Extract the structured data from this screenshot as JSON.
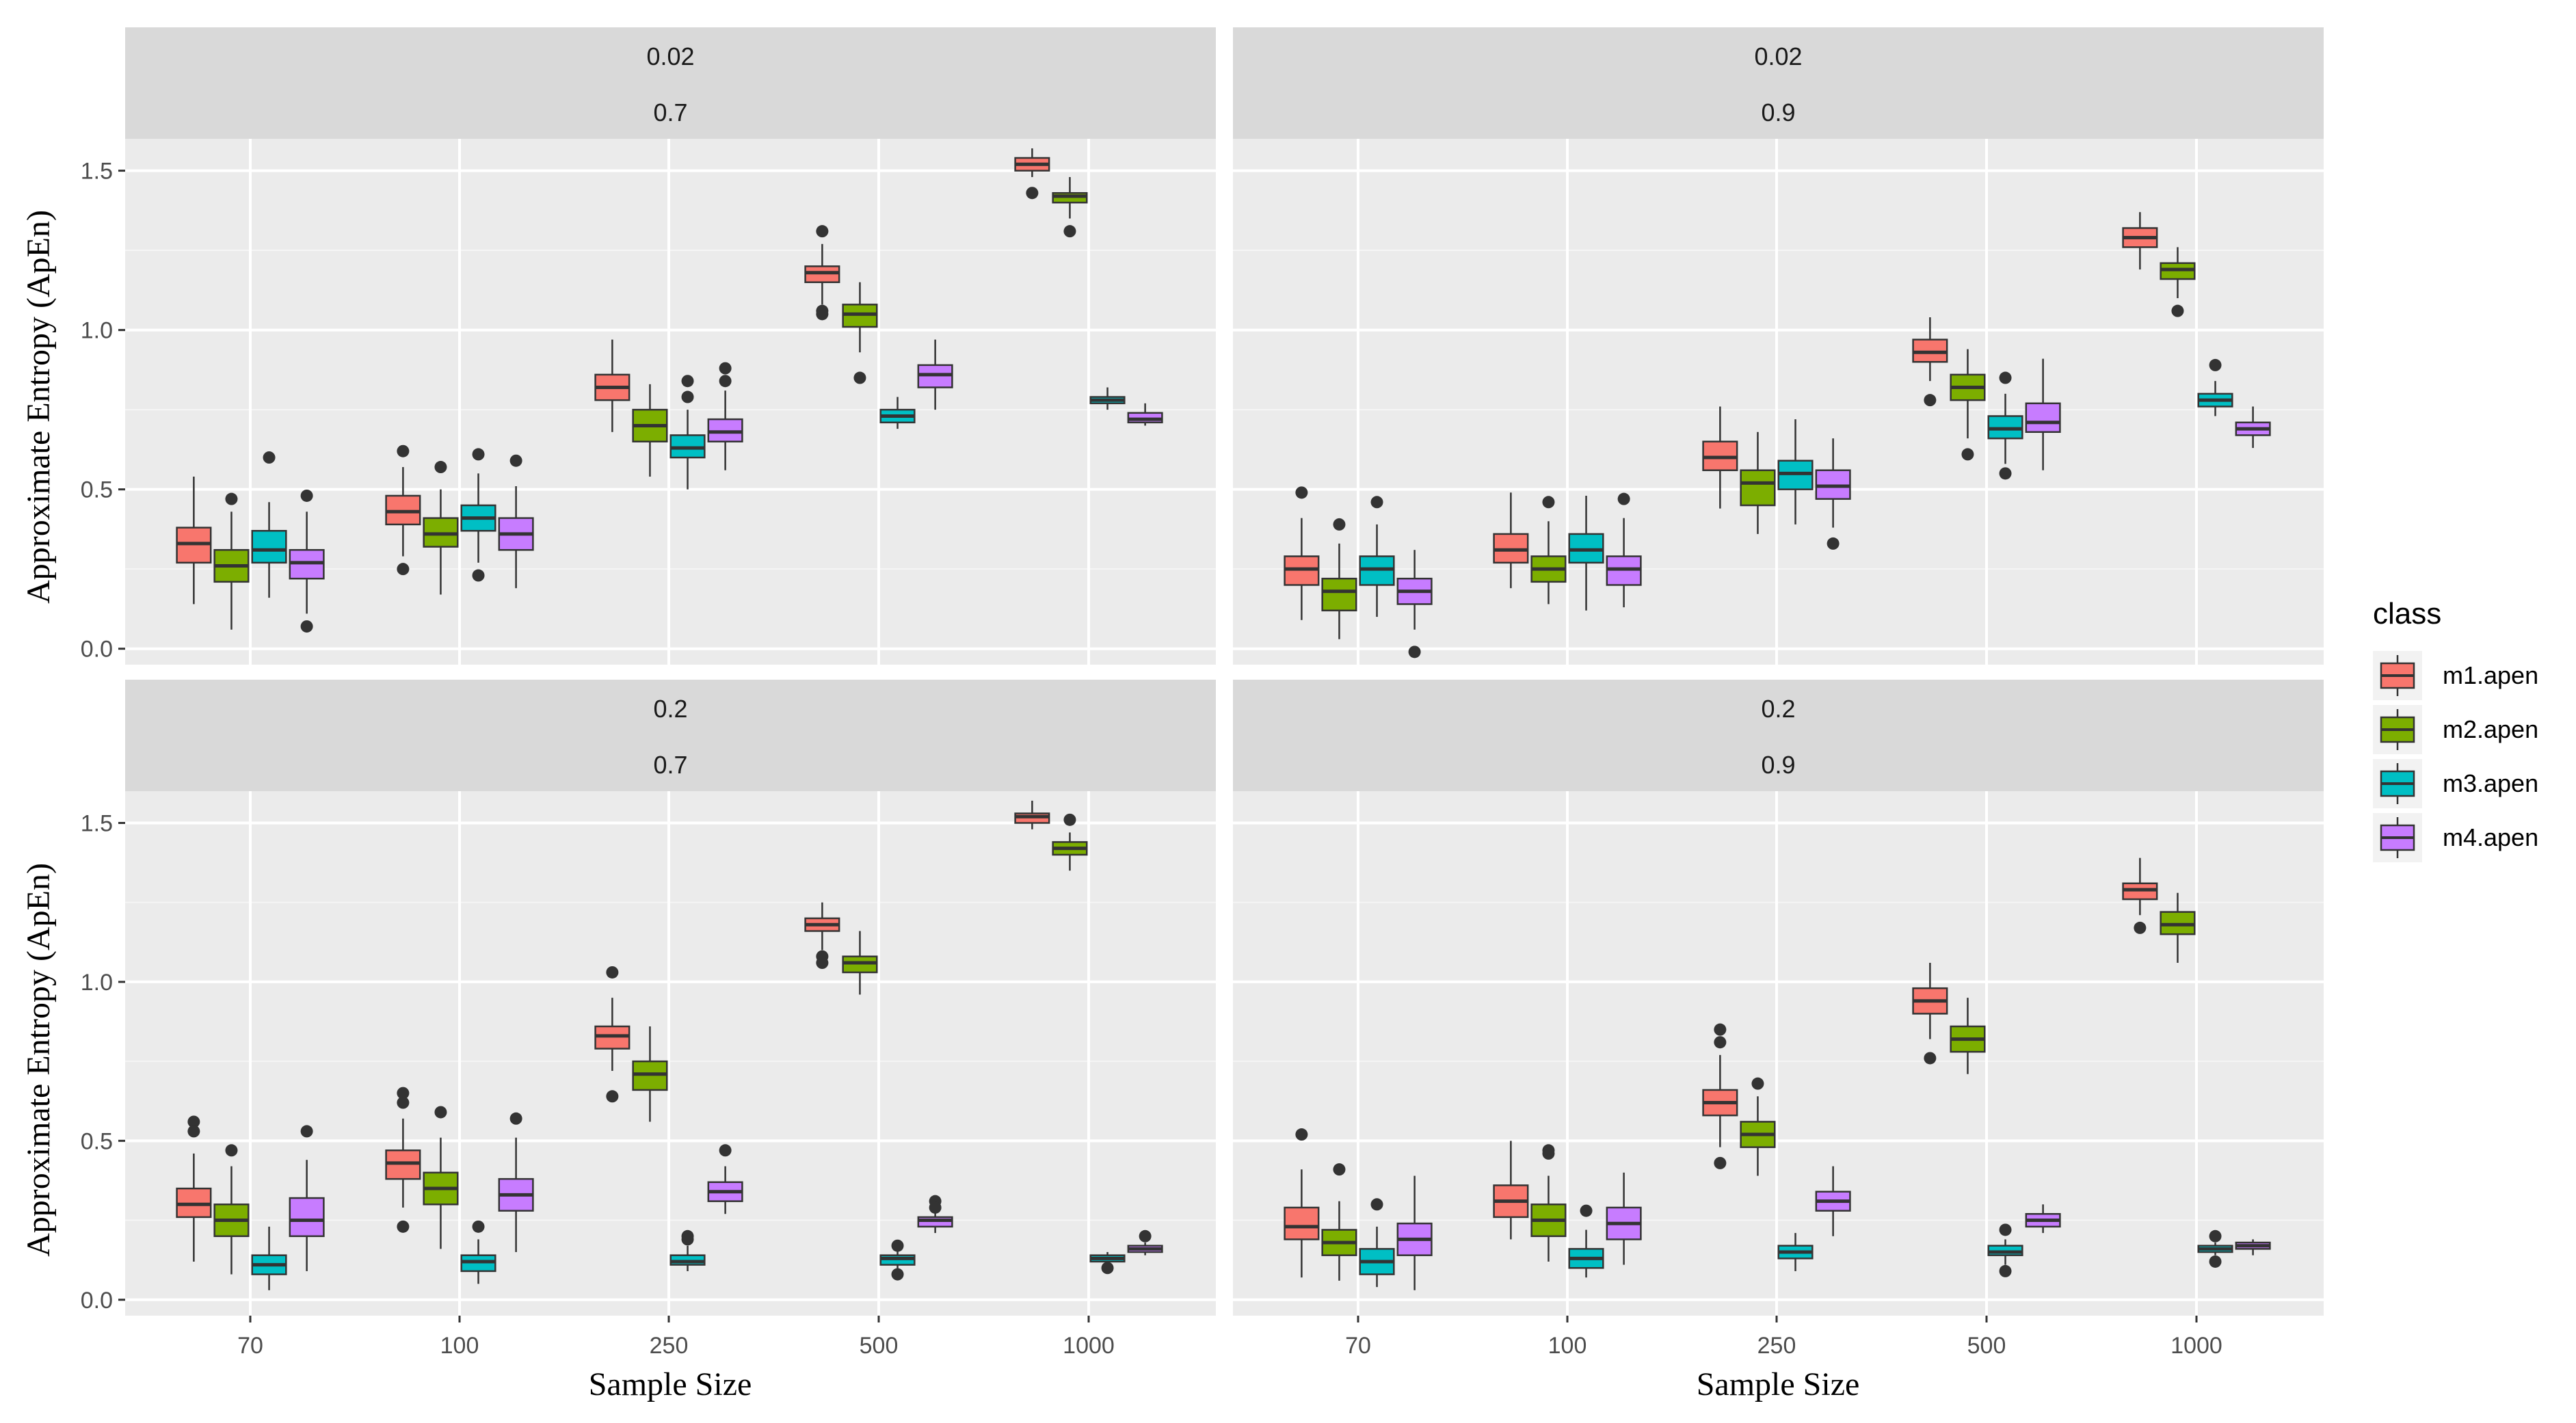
{
  "chart_data": {
    "type": "boxplot",
    "xlabel": "Sample Size",
    "ylabel": "Approximate Entropy (ApEn)",
    "categories": [
      "70",
      "100",
      "250",
      "500",
      "1000"
    ],
    "ylim": [
      -0.05,
      1.6
    ],
    "yticks": [
      0.0,
      0.5,
      1.0,
      1.5
    ],
    "ytick_labels": [
      "0.0",
      "0.5",
      "1.0",
      "1.5"
    ],
    "legend": {
      "title": "class",
      "position": "right",
      "entries": [
        {
          "name": "m1.apen",
          "color": "#F8766D"
        },
        {
          "name": "m2.apen",
          "color": "#7CAE00"
        },
        {
          "name": "m3.apen",
          "color": "#00BFC4"
        },
        {
          "name": "m4.apen",
          "color": "#C77CFF"
        }
      ]
    },
    "panels": [
      {
        "strip": [
          "0.02",
          "0.7"
        ],
        "boxes": [
          [
            {
              "wl": 0.14,
              "q1": 0.27,
              "med": 0.33,
              "q3": 0.38,
              "wh": 0.54,
              "out": []
            },
            {
              "wl": 0.06,
              "q1": 0.21,
              "med": 0.26,
              "q3": 0.31,
              "wh": 0.43,
              "out": [
                0.47
              ]
            },
            {
              "wl": 0.16,
              "q1": 0.27,
              "med": 0.31,
              "q3": 0.37,
              "wh": 0.46,
              "out": [
                0.6
              ]
            },
            {
              "wl": 0.11,
              "q1": 0.22,
              "med": 0.27,
              "q3": 0.31,
              "wh": 0.43,
              "out": [
                0.48,
                0.07
              ]
            }
          ],
          [
            {
              "wl": 0.29,
              "q1": 0.39,
              "med": 0.43,
              "q3": 0.48,
              "wh": 0.57,
              "out": [
                0.62,
                0.25
              ]
            },
            {
              "wl": 0.17,
              "q1": 0.32,
              "med": 0.36,
              "q3": 0.41,
              "wh": 0.5,
              "out": [
                0.57
              ]
            },
            {
              "wl": 0.27,
              "q1": 0.37,
              "med": 0.41,
              "q3": 0.45,
              "wh": 0.55,
              "out": [
                0.61,
                0.23
              ]
            },
            {
              "wl": 0.19,
              "q1": 0.31,
              "med": 0.36,
              "q3": 0.41,
              "wh": 0.51,
              "out": [
                0.59
              ]
            }
          ],
          [
            {
              "wl": 0.68,
              "q1": 0.78,
              "med": 0.82,
              "q3": 0.86,
              "wh": 0.97,
              "out": []
            },
            {
              "wl": 0.54,
              "q1": 0.65,
              "med": 0.7,
              "q3": 0.75,
              "wh": 0.83,
              "out": []
            },
            {
              "wl": 0.5,
              "q1": 0.6,
              "med": 0.63,
              "q3": 0.67,
              "wh": 0.75,
              "out": [
                0.84,
                0.79
              ]
            },
            {
              "wl": 0.56,
              "q1": 0.65,
              "med": 0.68,
              "q3": 0.72,
              "wh": 0.81,
              "out": [
                0.88,
                0.84
              ]
            }
          ],
          [
            {
              "wl": 1.08,
              "q1": 1.15,
              "med": 1.18,
              "q3": 1.2,
              "wh": 1.27,
              "out": [
                1.31,
                1.06,
                1.05
              ]
            },
            {
              "wl": 0.93,
              "q1": 1.01,
              "med": 1.05,
              "q3": 1.08,
              "wh": 1.15,
              "out": [
                0.85
              ]
            },
            {
              "wl": 0.69,
              "q1": 0.71,
              "med": 0.73,
              "q3": 0.75,
              "wh": 0.79,
              "out": []
            },
            {
              "wl": 0.75,
              "q1": 0.82,
              "med": 0.86,
              "q3": 0.89,
              "wh": 0.97,
              "out": []
            }
          ],
          [
            {
              "wl": 1.48,
              "q1": 1.5,
              "med": 1.52,
              "q3": 1.54,
              "wh": 1.57,
              "out": [
                1.43
              ]
            },
            {
              "wl": 1.35,
              "q1": 1.4,
              "med": 1.42,
              "q3": 1.43,
              "wh": 1.48,
              "out": [
                1.31
              ]
            },
            {
              "wl": 0.75,
              "q1": 0.77,
              "med": 0.78,
              "q3": 0.79,
              "wh": 0.82,
              "out": []
            },
            {
              "wl": 0.7,
              "q1": 0.71,
              "med": 0.72,
              "q3": 0.74,
              "wh": 0.77,
              "out": []
            }
          ]
        ]
      },
      {
        "strip": [
          "0.02",
          "0.9"
        ],
        "boxes": [
          [
            {
              "wl": 0.09,
              "q1": 0.2,
              "med": 0.25,
              "q3": 0.29,
              "wh": 0.41,
              "out": [
                0.49
              ]
            },
            {
              "wl": 0.03,
              "q1": 0.12,
              "med": 0.18,
              "q3": 0.22,
              "wh": 0.33,
              "out": [
                0.39
              ]
            },
            {
              "wl": 0.1,
              "q1": 0.2,
              "med": 0.25,
              "q3": 0.29,
              "wh": 0.39,
              "out": [
                0.46
              ]
            },
            {
              "wl": 0.06,
              "q1": 0.14,
              "med": 0.18,
              "q3": 0.22,
              "wh": 0.31,
              "out": [
                -0.01
              ]
            }
          ],
          [
            {
              "wl": 0.19,
              "q1": 0.27,
              "med": 0.31,
              "q3": 0.36,
              "wh": 0.49,
              "out": []
            },
            {
              "wl": 0.14,
              "q1": 0.21,
              "med": 0.25,
              "q3": 0.29,
              "wh": 0.4,
              "out": [
                0.46
              ]
            },
            {
              "wl": 0.12,
              "q1": 0.27,
              "med": 0.31,
              "q3": 0.36,
              "wh": 0.48,
              "out": []
            },
            {
              "wl": 0.13,
              "q1": 0.2,
              "med": 0.25,
              "q3": 0.29,
              "wh": 0.41,
              "out": [
                0.47
              ]
            }
          ],
          [
            {
              "wl": 0.44,
              "q1": 0.56,
              "med": 0.6,
              "q3": 0.65,
              "wh": 0.76,
              "out": []
            },
            {
              "wl": 0.36,
              "q1": 0.45,
              "med": 0.52,
              "q3": 0.56,
              "wh": 0.68,
              "out": []
            },
            {
              "wl": 0.39,
              "q1": 0.5,
              "med": 0.55,
              "q3": 0.59,
              "wh": 0.72,
              "out": []
            },
            {
              "wl": 0.38,
              "q1": 0.47,
              "med": 0.51,
              "q3": 0.56,
              "wh": 0.66,
              "out": [
                0.33
              ]
            }
          ],
          [
            {
              "wl": 0.84,
              "q1": 0.9,
              "med": 0.93,
              "q3": 0.97,
              "wh": 1.04,
              "out": [
                0.78
              ]
            },
            {
              "wl": 0.66,
              "q1": 0.78,
              "med": 0.82,
              "q3": 0.86,
              "wh": 0.94,
              "out": [
                0.61
              ]
            },
            {
              "wl": 0.58,
              "q1": 0.66,
              "med": 0.69,
              "q3": 0.73,
              "wh": 0.8,
              "out": [
                0.85,
                0.55
              ]
            },
            {
              "wl": 0.56,
              "q1": 0.68,
              "med": 0.71,
              "q3": 0.77,
              "wh": 0.91,
              "out": []
            }
          ],
          [
            {
              "wl": 1.19,
              "q1": 1.26,
              "med": 1.29,
              "q3": 1.32,
              "wh": 1.37,
              "out": []
            },
            {
              "wl": 1.1,
              "q1": 1.16,
              "med": 1.19,
              "q3": 1.21,
              "wh": 1.26,
              "out": [
                1.06
              ]
            },
            {
              "wl": 0.73,
              "q1": 0.76,
              "med": 0.78,
              "q3": 0.8,
              "wh": 0.84,
              "out": [
                0.89
              ]
            },
            {
              "wl": 0.63,
              "q1": 0.67,
              "med": 0.69,
              "q3": 0.71,
              "wh": 0.76,
              "out": []
            }
          ]
        ]
      },
      {
        "strip": [
          "0.2",
          "0.7"
        ],
        "boxes": [
          [
            {
              "wl": 0.12,
              "q1": 0.26,
              "med": 0.3,
              "q3": 0.35,
              "wh": 0.46,
              "out": [
                0.56,
                0.53
              ]
            },
            {
              "wl": 0.08,
              "q1": 0.2,
              "med": 0.25,
              "q3": 0.3,
              "wh": 0.42,
              "out": [
                0.47
              ]
            },
            {
              "wl": 0.03,
              "q1": 0.08,
              "med": 0.11,
              "q3": 0.14,
              "wh": 0.23,
              "out": []
            },
            {
              "wl": 0.09,
              "q1": 0.2,
              "med": 0.25,
              "q3": 0.32,
              "wh": 0.44,
              "out": [
                0.53
              ]
            }
          ],
          [
            {
              "wl": 0.29,
              "q1": 0.38,
              "med": 0.43,
              "q3": 0.47,
              "wh": 0.57,
              "out": [
                0.65,
                0.62,
                0.23
              ]
            },
            {
              "wl": 0.16,
              "q1": 0.3,
              "med": 0.35,
              "q3": 0.4,
              "wh": 0.51,
              "out": [
                0.59
              ]
            },
            {
              "wl": 0.05,
              "q1": 0.09,
              "med": 0.12,
              "q3": 0.14,
              "wh": 0.19,
              "out": [
                0.23
              ]
            },
            {
              "wl": 0.15,
              "q1": 0.28,
              "med": 0.33,
              "q3": 0.38,
              "wh": 0.51,
              "out": [
                0.57
              ]
            }
          ],
          [
            {
              "wl": 0.72,
              "q1": 0.79,
              "med": 0.83,
              "q3": 0.86,
              "wh": 0.95,
              "out": [
                1.03,
                0.64
              ]
            },
            {
              "wl": 0.56,
              "q1": 0.66,
              "med": 0.71,
              "q3": 0.75,
              "wh": 0.86,
              "out": []
            },
            {
              "wl": 0.09,
              "q1": 0.11,
              "med": 0.12,
              "q3": 0.14,
              "wh": 0.17,
              "out": [
                0.2,
                0.19
              ]
            },
            {
              "wl": 0.27,
              "q1": 0.31,
              "med": 0.34,
              "q3": 0.37,
              "wh": 0.42,
              "out": [
                0.47
              ]
            }
          ],
          [
            {
              "wl": 1.1,
              "q1": 1.16,
              "med": 1.18,
              "q3": 1.2,
              "wh": 1.25,
              "out": [
                1.08,
                1.06
              ]
            },
            {
              "wl": 0.96,
              "q1": 1.03,
              "med": 1.06,
              "q3": 1.08,
              "wh": 1.16,
              "out": []
            },
            {
              "wl": 0.09,
              "q1": 0.11,
              "med": 0.13,
              "q3": 0.14,
              "wh": 0.16,
              "out": [
                0.17,
                0.08
              ]
            },
            {
              "wl": 0.21,
              "q1": 0.23,
              "med": 0.25,
              "q3": 0.26,
              "wh": 0.28,
              "out": [
                0.31,
                0.29
              ]
            }
          ],
          [
            {
              "wl": 1.48,
              "q1": 1.5,
              "med": 1.52,
              "q3": 1.53,
              "wh": 1.57,
              "out": []
            },
            {
              "wl": 1.35,
              "q1": 1.4,
              "med": 1.42,
              "q3": 1.44,
              "wh": 1.47,
              "out": [
                1.51
              ]
            },
            {
              "wl": 0.11,
              "q1": 0.12,
              "med": 0.13,
              "q3": 0.14,
              "wh": 0.15,
              "out": [
                0.1
              ]
            },
            {
              "wl": 0.14,
              "q1": 0.15,
              "med": 0.16,
              "q3": 0.17,
              "wh": 0.18,
              "out": [
                0.2
              ]
            }
          ]
        ]
      },
      {
        "strip": [
          "0.2",
          "0.9"
        ],
        "boxes": [
          [
            {
              "wl": 0.07,
              "q1": 0.19,
              "med": 0.23,
              "q3": 0.29,
              "wh": 0.41,
              "out": [
                0.52
              ]
            },
            {
              "wl": 0.06,
              "q1": 0.14,
              "med": 0.18,
              "q3": 0.22,
              "wh": 0.31,
              "out": [
                0.41
              ]
            },
            {
              "wl": 0.04,
              "q1": 0.08,
              "med": 0.12,
              "q3": 0.16,
              "wh": 0.23,
              "out": [
                0.3
              ]
            },
            {
              "wl": 0.03,
              "q1": 0.14,
              "med": 0.19,
              "q3": 0.24,
              "wh": 0.39,
              "out": []
            }
          ],
          [
            {
              "wl": 0.19,
              "q1": 0.26,
              "med": 0.31,
              "q3": 0.36,
              "wh": 0.5,
              "out": []
            },
            {
              "wl": 0.12,
              "q1": 0.2,
              "med": 0.25,
              "q3": 0.3,
              "wh": 0.39,
              "out": [
                0.47,
                0.46
              ]
            },
            {
              "wl": 0.07,
              "q1": 0.1,
              "med": 0.13,
              "q3": 0.16,
              "wh": 0.22,
              "out": [
                0.28
              ]
            },
            {
              "wl": 0.11,
              "q1": 0.19,
              "med": 0.24,
              "q3": 0.29,
              "wh": 0.4,
              "out": []
            }
          ],
          [
            {
              "wl": 0.48,
              "q1": 0.58,
              "med": 0.62,
              "q3": 0.66,
              "wh": 0.77,
              "out": [
                0.85,
                0.81,
                0.43
              ]
            },
            {
              "wl": 0.39,
              "q1": 0.48,
              "med": 0.52,
              "q3": 0.56,
              "wh": 0.64,
              "out": [
                0.68
              ]
            },
            {
              "wl": 0.09,
              "q1": 0.13,
              "med": 0.15,
              "q3": 0.17,
              "wh": 0.21,
              "out": []
            },
            {
              "wl": 0.2,
              "q1": 0.28,
              "med": 0.31,
              "q3": 0.34,
              "wh": 0.42,
              "out": []
            }
          ],
          [
            {
              "wl": 0.82,
              "q1": 0.9,
              "med": 0.94,
              "q3": 0.98,
              "wh": 1.06,
              "out": [
                0.76
              ]
            },
            {
              "wl": 0.71,
              "q1": 0.78,
              "med": 0.82,
              "q3": 0.86,
              "wh": 0.95,
              "out": []
            },
            {
              "wl": 0.11,
              "q1": 0.14,
              "med": 0.15,
              "q3": 0.17,
              "wh": 0.19,
              "out": [
                0.22,
                0.09
              ]
            },
            {
              "wl": 0.21,
              "q1": 0.23,
              "med": 0.25,
              "q3": 0.27,
              "wh": 0.3,
              "out": []
            }
          ],
          [
            {
              "wl": 1.21,
              "q1": 1.26,
              "med": 1.29,
              "q3": 1.31,
              "wh": 1.39,
              "out": [
                1.17
              ]
            },
            {
              "wl": 1.06,
              "q1": 1.15,
              "med": 1.18,
              "q3": 1.22,
              "wh": 1.28,
              "out": []
            },
            {
              "wl": 0.14,
              "q1": 0.15,
              "med": 0.16,
              "q3": 0.17,
              "wh": 0.18,
              "out": [
                0.2,
                0.12
              ]
            },
            {
              "wl": 0.14,
              "q1": 0.16,
              "med": 0.17,
              "q3": 0.18,
              "wh": 0.19,
              "out": []
            }
          ]
        ]
      }
    ]
  }
}
